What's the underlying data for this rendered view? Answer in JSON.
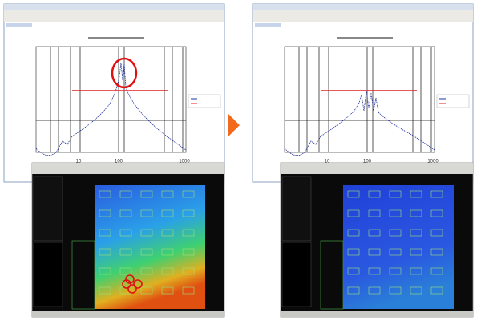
{
  "panels": [
    {
      "x_labels": [
        "10",
        "100",
        "1000"
      ]
    },
    {
      "x_labels": [
        "10",
        "100",
        "1000"
      ]
    }
  ]
}
